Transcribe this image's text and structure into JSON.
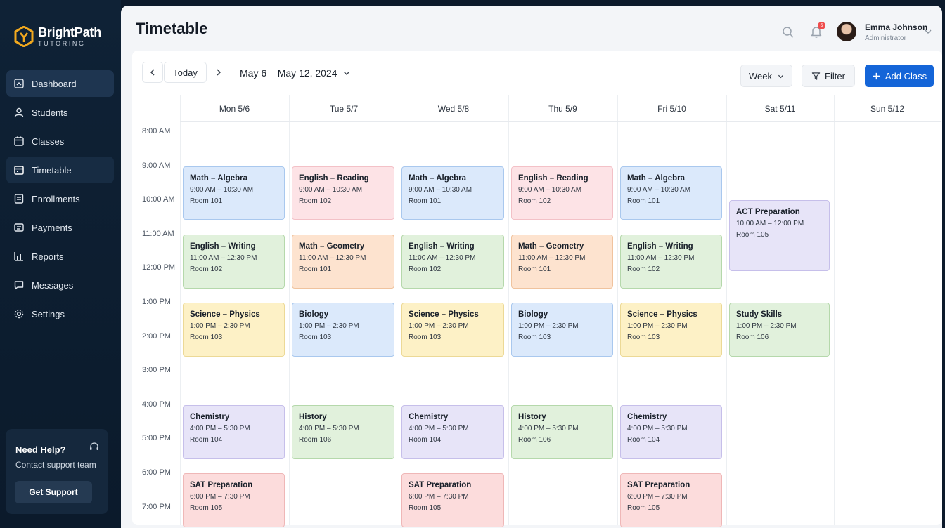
{
  "app": {
    "name": "BrightPath",
    "tagline": "TUTORING"
  },
  "sidebar": {
    "items": [
      {
        "label": "Dashboard",
        "icon": "dashboard-icon"
      },
      {
        "label": "Students",
        "icon": "students-icon"
      },
      {
        "label": "Classes",
        "icon": "classes-icon"
      },
      {
        "label": "Timetable",
        "icon": "timetable-icon"
      },
      {
        "label": "Enrollments",
        "icon": "enrollments-icon"
      },
      {
        "label": "Payments",
        "icon": "payments-icon"
      },
      {
        "label": "Reports",
        "icon": "reports-icon"
      },
      {
        "label": "Messages",
        "icon": "messages-icon"
      },
      {
        "label": "Settings",
        "icon": "settings-icon"
      }
    ],
    "help": {
      "title": "Need Help?",
      "subtitle": "Contact support team",
      "button": "Get Support"
    }
  },
  "header": {
    "title": "Timetable",
    "notifications": "5",
    "user": {
      "name": "Emma Johnson",
      "role": "Administrator"
    }
  },
  "toolbar": {
    "today": "Today",
    "range": "May 6 – May 12, 2024",
    "view": "Week",
    "filter": "Filter",
    "add": "Add Class"
  },
  "days": [
    "Mon 5/6",
    "Tue 5/7",
    "Wed 5/8",
    "Thu 5/9",
    "Fri 5/10",
    "Sat 5/11",
    "Sun 5/12"
  ],
  "times": [
    "8:00 AM",
    "9:00 AM",
    "10:00 AM",
    "11:00 AM",
    "12:00 PM",
    "1:00 PM",
    "2:00 PM",
    "3:00 PM",
    "4:00 PM",
    "5:00 PM",
    "6:00 PM",
    "7:00 PM"
  ],
  "colors": {
    "blue": {
      "bg": "#dbe9fb",
      "border": "#a9c8ee"
    },
    "pink": {
      "bg": "#fde3e6",
      "border": "#f3c1c7"
    },
    "green": {
      "bg": "#e1f1dc",
      "border": "#b5d8ab"
    },
    "orange": {
      "bg": "#fde3cf",
      "border": "#f0c39e"
    },
    "yellow": {
      "bg": "#fdf1c6",
      "border": "#ecd996"
    },
    "purple": {
      "bg": "#e7e4f8",
      "border": "#c6bfea"
    },
    "red": {
      "bg": "#fcdcdc",
      "border": "#efb7b7"
    },
    "accent": "#1465d8"
  },
  "events": [
    {
      "day": 0,
      "title": "Math – Algebra",
      "time": "9:00 AM – 10:30 AM",
      "room": "Room 101",
      "color": "blue"
    },
    {
      "day": 0,
      "title": "English – Writing",
      "time": "11:00 AM – 12:30 PM",
      "room": "Room 102",
      "color": "green"
    },
    {
      "day": 0,
      "title": "Science – Physics",
      "time": "1:00 PM – 2:30 PM",
      "room": "Room 103",
      "color": "yellow"
    },
    {
      "day": 0,
      "title": "Chemistry",
      "time": "4:00 PM – 5:30 PM",
      "room": "Room 104",
      "color": "purple"
    },
    {
      "day": 0,
      "title": "SAT Preparation",
      "time": "6:00 PM – 7:30 PM",
      "room": "Room 105",
      "color": "red"
    },
    {
      "day": 1,
      "title": "English – Reading",
      "time": "9:00 AM – 10:30 AM",
      "room": "Room 102",
      "color": "pink"
    },
    {
      "day": 1,
      "title": "Math – Geometry",
      "time": "11:00 AM – 12:30 PM",
      "room": "Room 101",
      "color": "orange"
    },
    {
      "day": 1,
      "title": "Biology",
      "time": "1:00 PM – 2:30 PM",
      "room": "Room 103",
      "color": "blue"
    },
    {
      "day": 1,
      "title": "History",
      "time": "4:00 PM – 5:30 PM",
      "room": "Room 106",
      "color": "green"
    },
    {
      "day": 2,
      "title": "Math – Algebra",
      "time": "9:00 AM – 10:30 AM",
      "room": "Room 101",
      "color": "blue"
    },
    {
      "day": 2,
      "title": "English – Writing",
      "time": "11:00 AM – 12:30 PM",
      "room": "Room 102",
      "color": "green"
    },
    {
      "day": 2,
      "title": "Science – Physics",
      "time": "1:00 PM – 2:30 PM",
      "room": "Room 103",
      "color": "yellow"
    },
    {
      "day": 2,
      "title": "Chemistry",
      "time": "4:00 PM – 5:30 PM",
      "room": "Room 104",
      "color": "purple"
    },
    {
      "day": 2,
      "title": "SAT Preparation",
      "time": "6:00 PM – 7:30 PM",
      "room": "Room 105",
      "color": "red"
    },
    {
      "day": 3,
      "title": "English – Reading",
      "time": "9:00 AM – 10:30 AM",
      "room": "Room 102",
      "color": "pink"
    },
    {
      "day": 3,
      "title": "Math – Geometry",
      "time": "11:00 AM – 12:30 PM",
      "room": "Room 101",
      "color": "orange"
    },
    {
      "day": 3,
      "title": "Biology",
      "time": "1:00 PM – 2:30 PM",
      "room": "Room 103",
      "color": "blue"
    },
    {
      "day": 3,
      "title": "History",
      "time": "4:00 PM – 5:30 PM",
      "room": "Room 106",
      "color": "green"
    },
    {
      "day": 4,
      "title": "Math – Algebra",
      "time": "9:00 AM – 10:30 AM",
      "room": "Room 101",
      "color": "blue"
    },
    {
      "day": 4,
      "title": "English – Writing",
      "time": "11:00 AM – 12:30 PM",
      "room": "Room 102",
      "color": "green"
    },
    {
      "day": 4,
      "title": "Science – Physics",
      "time": "1:00 PM – 2:30 PM",
      "room": "Room 103",
      "color": "yellow"
    },
    {
      "day": 4,
      "title": "Chemistry",
      "time": "4:00 PM – 5:30 PM",
      "room": "Room 104",
      "color": "purple"
    },
    {
      "day": 4,
      "title": "SAT Preparation",
      "time": "6:00 PM – 7:30 PM",
      "room": "Room 105",
      "color": "red"
    },
    {
      "day": 5,
      "title": "ACT Preparation",
      "time": "10:00 AM – 12:00 PM",
      "room": "Room 105",
      "color": "purple"
    },
    {
      "day": 5,
      "title": "Study Skills",
      "time": "1:00 PM – 2:30 PM",
      "room": "Room 106",
      "color": "green"
    }
  ]
}
